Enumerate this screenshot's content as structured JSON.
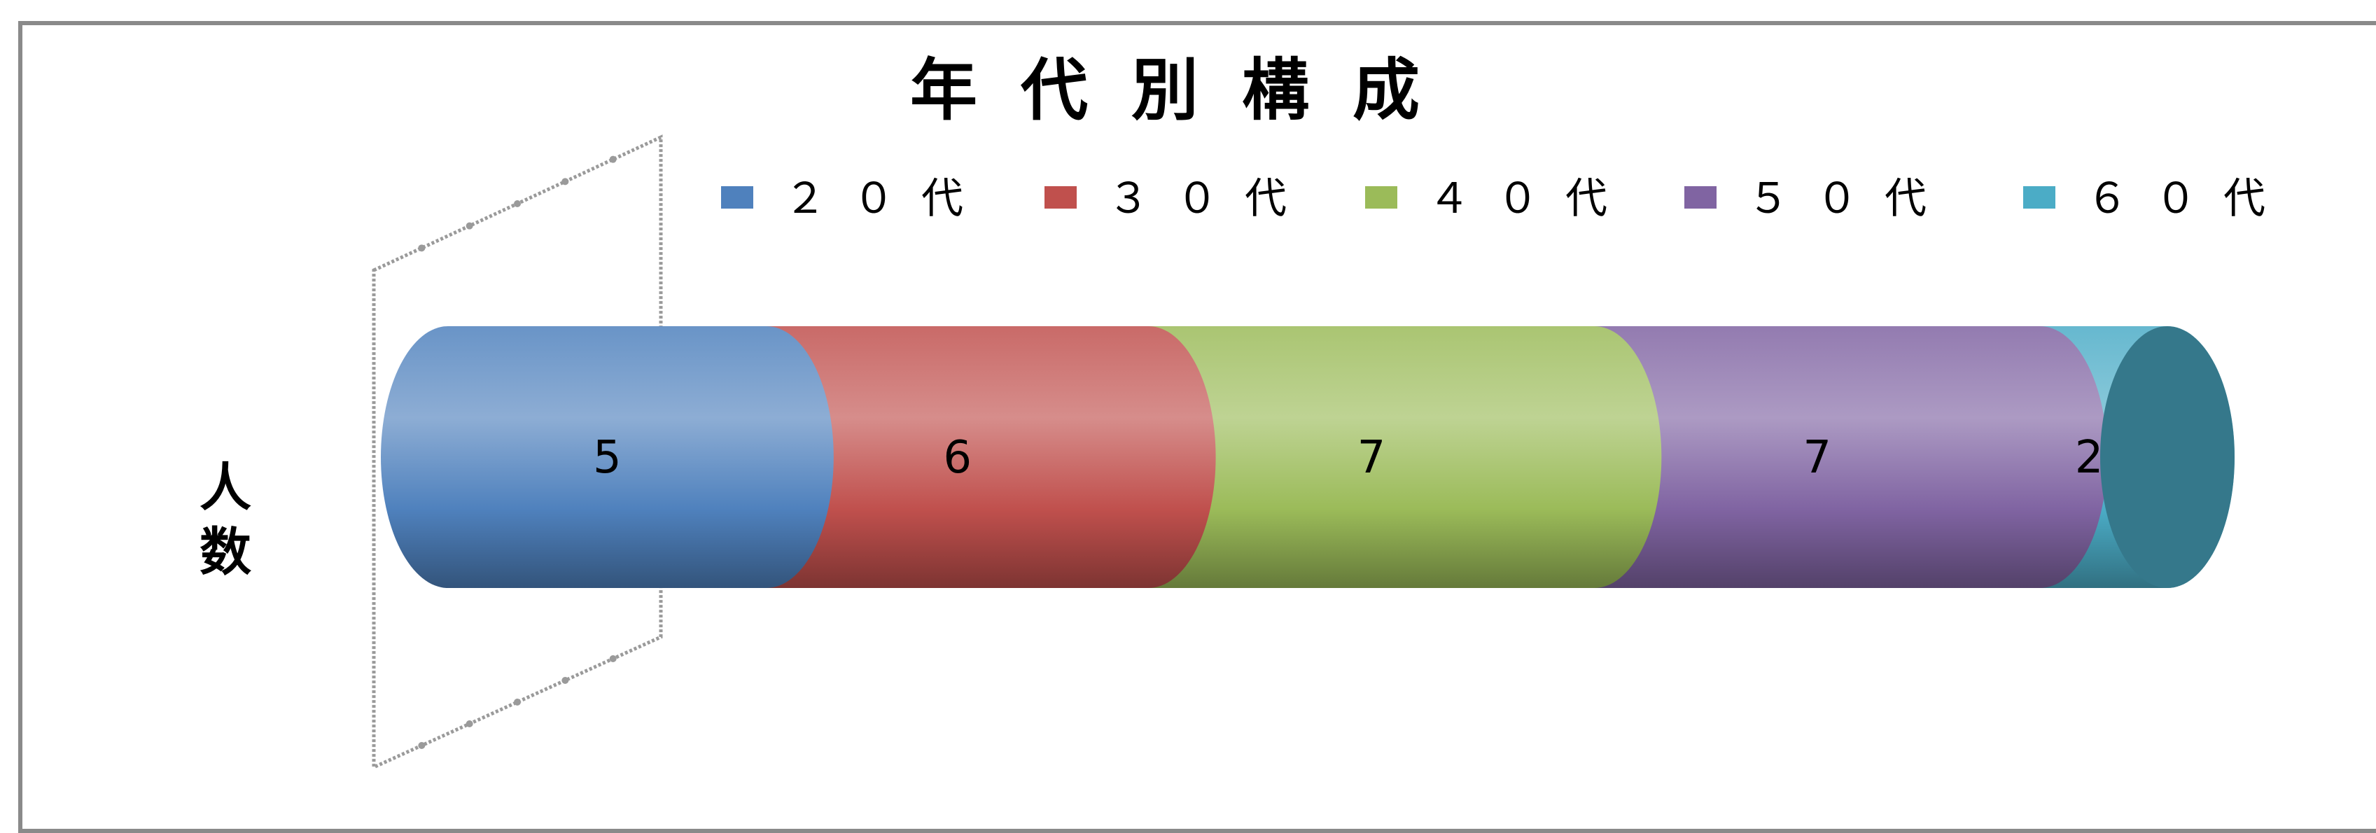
{
  "chart_data": {
    "type": "bar",
    "orientation": "horizontal-stacked-cylinder",
    "title": "年代別構成",
    "ylabel": "人数",
    "categories": [
      ""
    ],
    "series": [
      {
        "name": "２０代",
        "values": [
          5
        ],
        "color": "#4f81bd"
      },
      {
        "name": "３０代",
        "values": [
          6
        ],
        "color": "#c0504d"
      },
      {
        "name": "４０代",
        "values": [
          7
        ],
        "color": "#9bbb59"
      },
      {
        "name": "５０代",
        "values": [
          7
        ],
        "color": "#8064a2"
      },
      {
        "name": "６０代",
        "values": [
          2
        ],
        "color": "#4bacc6"
      }
    ],
    "legend_position": "top",
    "grid": false
  }
}
